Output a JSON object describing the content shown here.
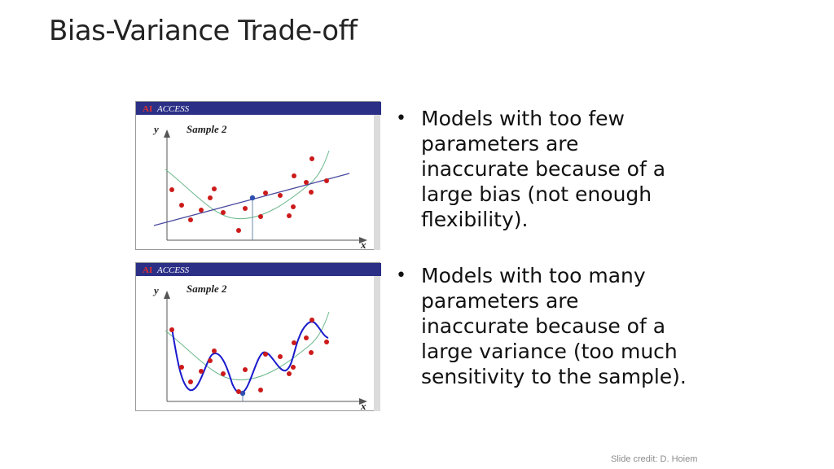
{
  "slide": {
    "title": "Bias-Variance Trade-off",
    "credit": "Slide credit: D. Hoiem"
  },
  "figures": [
    {
      "banner_logo": "AI",
      "banner_text": "ACCESS",
      "axis_y": "y",
      "axis_x": "x",
      "sample_label": "Sample 2",
      "fit": "linear"
    },
    {
      "banner_logo": "AI",
      "banner_text": "ACCESS",
      "axis_y": "y",
      "axis_x": "x",
      "sample_label": "Sample 2",
      "fit": "high-order polynomial"
    }
  ],
  "bullets": [
    {
      "text": "Models with too few parameters are inaccurate because of a large bias (not enough flexibility)."
    },
    {
      "text": "Models with too many parameters are inaccurate because of a large variance (too much sensitivity to the sample)."
    }
  ],
  "colors": {
    "banner": "#2b2f86",
    "points": "#cc1a1a",
    "true_curve": "#6ab88c",
    "linear_fit": "#4a4aa0",
    "poly_fit": "#1a1acc"
  }
}
